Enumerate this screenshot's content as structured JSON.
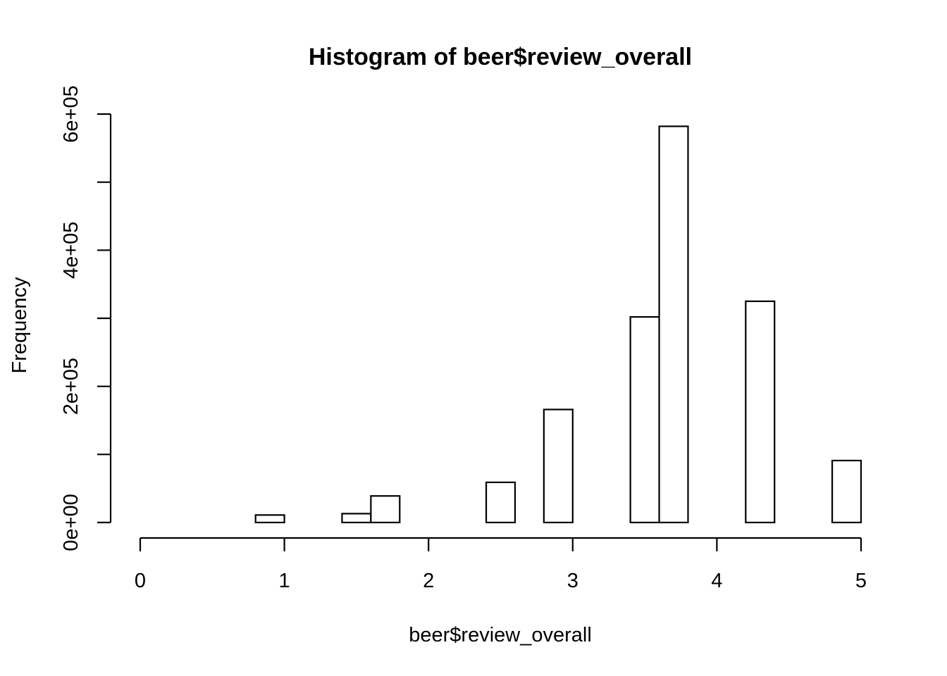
{
  "chart_data": {
    "type": "bar",
    "title": "Histogram of beer$review_overall",
    "xlabel": "beer$review_overall",
    "ylabel": "Frequency",
    "xlim": [
      0,
      5
    ],
    "ylim": [
      0,
      600000
    ],
    "x_ticks": [
      0,
      1,
      2,
      3,
      4,
      5
    ],
    "x_tick_labels": [
      "0",
      "1",
      "2",
      "3",
      "4",
      "5"
    ],
    "y_ticks": [
      0,
      100000,
      200000,
      300000,
      400000,
      500000,
      600000
    ],
    "y_tick_labels": [
      "0e+00",
      "",
      "2e+05",
      "",
      "4e+05",
      "",
      "6e+05"
    ],
    "bin_edges": [
      0,
      0.2,
      0.4,
      0.6,
      0.8,
      1.0,
      1.2,
      1.4,
      1.6,
      1.8,
      2.0,
      2.2,
      2.4,
      2.6,
      2.8,
      3.0,
      3.2,
      3.4,
      3.6,
      3.8,
      4.0,
      4.2,
      4.4,
      4.6,
      4.8,
      5.0
    ],
    "values": [
      0,
      0,
      0,
      0,
      11000,
      0,
      0,
      13000,
      39000,
      0,
      0,
      0,
      59000,
      0,
      166000,
      0,
      0,
      302000,
      582000,
      0,
      0,
      325000,
      0,
      0,
      91000
    ],
    "grid": false,
    "color": "#ffffff",
    "edge_color": "#000000"
  }
}
